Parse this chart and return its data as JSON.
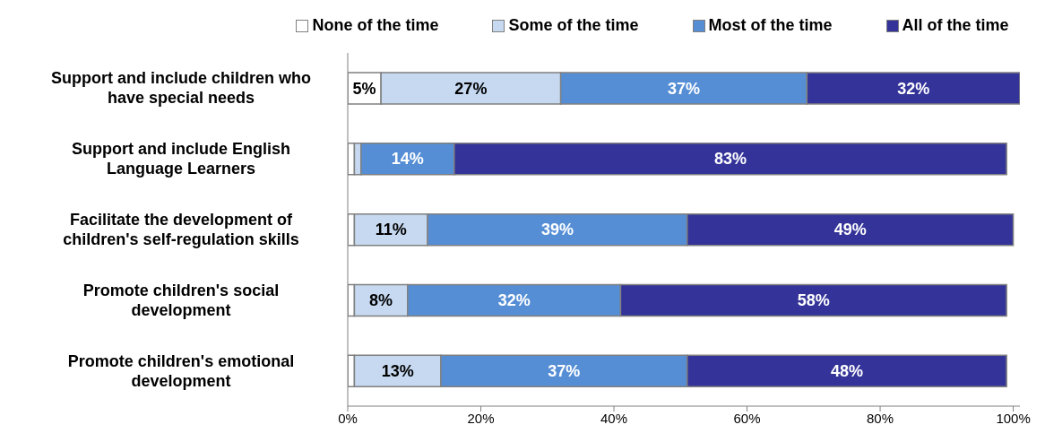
{
  "chart_data": {
    "type": "bar",
    "orientation": "horizontal",
    "stacked": true,
    "categories": [
      "Support and include children who have special needs",
      "Support and include English Language Learners",
      "Facilitate the development of children's self-regulation skills",
      "Promote children's social development",
      "Promote children's emotional development"
    ],
    "series": [
      {
        "name": "None of the time",
        "color": "#ffffff",
        "values": [
          5,
          1,
          1,
          1,
          1
        ],
        "value_labels": [
          "5%",
          null,
          null,
          null,
          null
        ]
      },
      {
        "name": "Some of the time",
        "color": "#c6d9f1",
        "values": [
          27,
          1,
          11,
          8,
          13
        ],
        "value_labels": [
          "27%",
          null,
          "11%",
          "8%",
          "13%"
        ]
      },
      {
        "name": "Most of the time",
        "color": "#558ed5",
        "values": [
          37,
          14,
          39,
          32,
          37
        ],
        "value_labels": [
          "37%",
          "14%",
          "39%",
          "32%",
          "37%"
        ]
      },
      {
        "name": "All of the time",
        "color": "#333399",
        "values": [
          32,
          83,
          49,
          58,
          48
        ],
        "value_labels": [
          "32%",
          "83%",
          "49%",
          "58%",
          "48%"
        ]
      }
    ],
    "xlim": [
      0,
      101
    ],
    "xticks": [
      {
        "value": 0,
        "label": "0%"
      },
      {
        "value": 20,
        "label": "20%"
      },
      {
        "value": 40,
        "label": "40%"
      },
      {
        "value": 60,
        "label": "60%"
      },
      {
        "value": 80,
        "label": "80%"
      },
      {
        "value": 100,
        "label": "100%"
      }
    ],
    "grid": false,
    "legend": "top"
  }
}
